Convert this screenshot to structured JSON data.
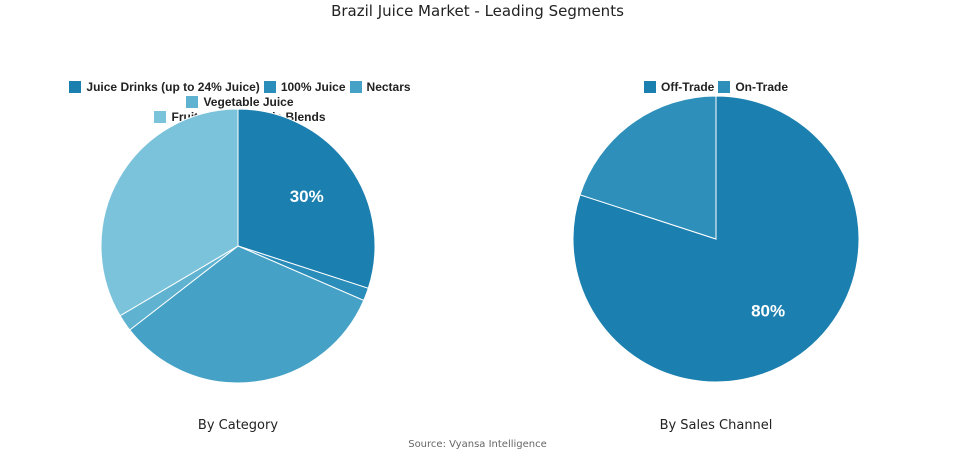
{
  "title": "Brazil Juice Market - Leading Segments",
  "source": "Source: Vyansa Intelligence",
  "chart_data": [
    {
      "type": "pie",
      "subtitle": "By Category",
      "legend_position": "top",
      "categories": [
        "Juice Drinks (up to 24% Juice)",
        "100% Juice",
        "Nectars",
        "Vegetable Juice",
        "Fruit and Vegetable Blends"
      ],
      "values": [
        30,
        1.5,
        33,
        2,
        33.5
      ],
      "labels": [
        "30%",
        "",
        "",
        "",
        ""
      ],
      "colors": [
        "#1B7FAF",
        "#2A8DBA",
        "#45A2C6",
        "#5FB3D1",
        "#7BC3DB"
      ]
    },
    {
      "type": "pie",
      "subtitle": "By Sales Channel",
      "legend_position": "top",
      "categories": [
        "Off-Trade",
        "On-Trade"
      ],
      "values": [
        80,
        20
      ],
      "labels": [
        "80%",
        ""
      ],
      "colors": [
        "#1B7FAF",
        "#2E8FBB"
      ]
    }
  ]
}
